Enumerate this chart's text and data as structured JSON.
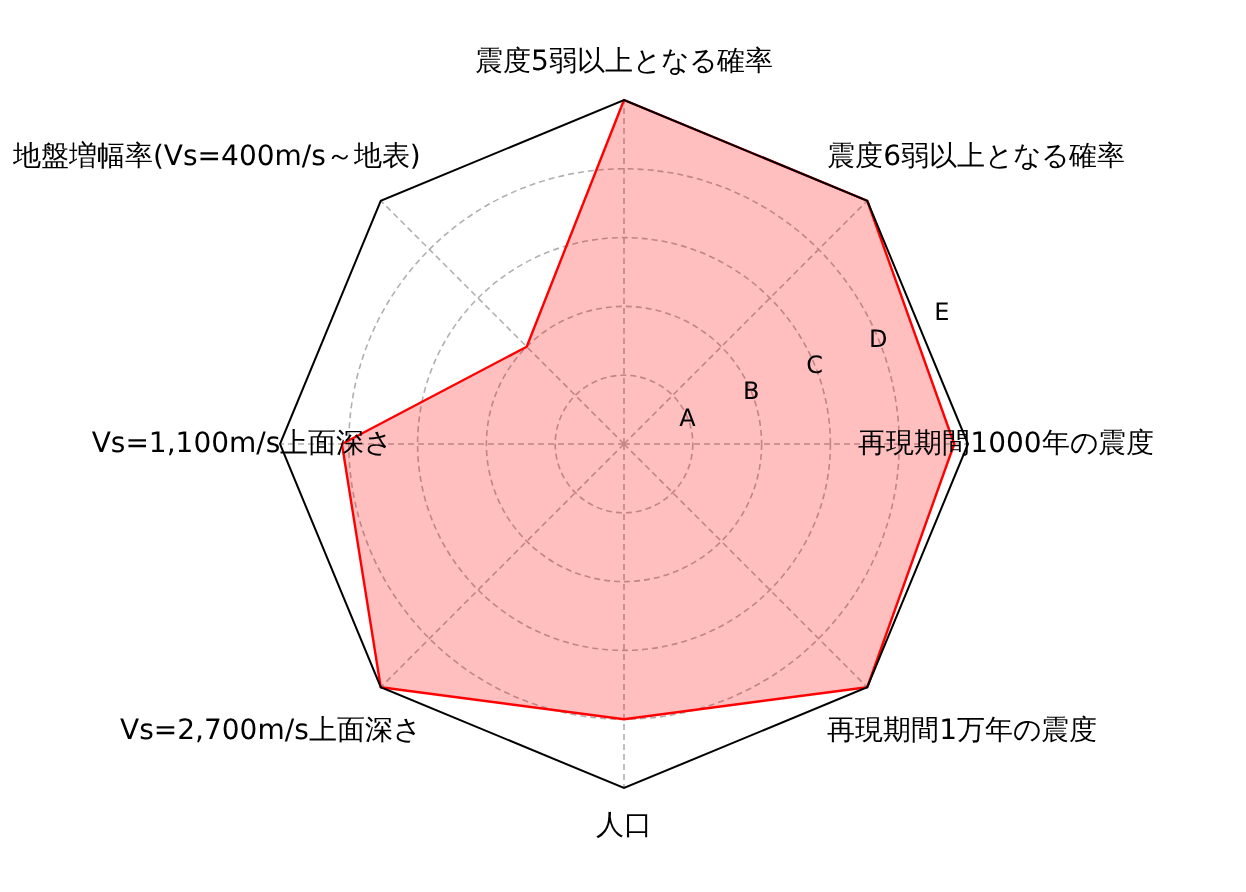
{
  "chart_data": {
    "type": "radar",
    "categories": [
      "震度5弱以上となる確率",
      "震度6弱以上となる確率",
      "再現期間1000年の震度",
      "再現期間1万年の震度",
      "人口",
      "Vs=2,700m/s上面深さ",
      "Vs=1,100m/s上面深さ",
      "地盤増幅率(Vs=400m/s～地表)"
    ],
    "series": [
      {
        "color": "#ff0000",
        "values": [
          5,
          5,
          4.8,
          5,
          4.0,
          5,
          4.1,
          2.0
        ]
      }
    ],
    "ylim": [
      0,
      5
    ],
    "yticks": [
      {
        "value": 1,
        "label": "A"
      },
      {
        "value": 2,
        "label": "B"
      },
      {
        "value": 3,
        "label": "C"
      },
      {
        "value": 4,
        "label": "D"
      },
      {
        "value": 5,
        "label": "E"
      }
    ],
    "grid": true
  }
}
